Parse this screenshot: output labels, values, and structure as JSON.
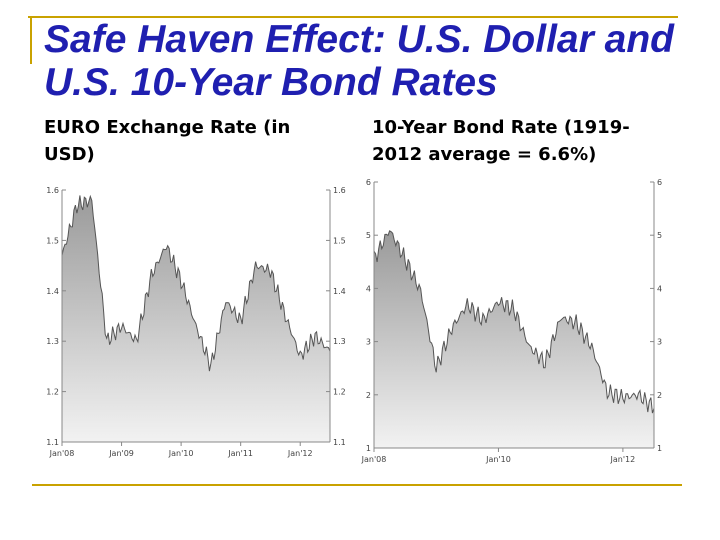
{
  "slide": {
    "title": "Safe Haven Effect:  U.S. Dollar and U.S. 10-Year Bond Rates",
    "left_heading": "EURO Exchange Rate (in USD)",
    "right_heading": "10-Year Bond Rate (1919-2012 average = 6.6%)",
    "accent_color": "#c9a200",
    "title_color": "#1f1fb0"
  },
  "chart_data": [
    {
      "type": "area",
      "x": [
        "Jan'08",
        "Apr'08",
        "Jul'08",
        "Oct'08",
        "Jan'09",
        "Apr'09",
        "Jul'09",
        "Oct'09",
        "Jan'10",
        "Apr'10",
        "Jul'10",
        "Oct'10",
        "Jan'11",
        "Apr'11",
        "Jul'11",
        "Oct'11",
        "Jan'12",
        "Apr'12",
        "May'12"
      ],
      "values": [
        1.47,
        1.57,
        1.58,
        1.3,
        1.33,
        1.3,
        1.43,
        1.49,
        1.42,
        1.33,
        1.25,
        1.38,
        1.34,
        1.45,
        1.44,
        1.35,
        1.27,
        1.31,
        1.28
      ],
      "x_tick_labels": [
        "Jan'08",
        "Jan'09",
        "Jan'10",
        "Jan'11",
        "Jan'12"
      ],
      "y_ticks": [
        "1.1",
        "1.2",
        "1.3",
        "1.4",
        "1.5",
        "1.6"
      ],
      "ylim": [
        1.1,
        1.6
      ],
      "grid": false,
      "fill_color": "#bdbdbd"
    },
    {
      "type": "area",
      "x": [
        "Jan'08",
        "Apr'08",
        "Jul'08",
        "Oct'08",
        "Jan'09",
        "Apr'09",
        "Jul'09",
        "Oct'09",
        "Jan'10",
        "Apr'10",
        "Jul'10",
        "Oct'10",
        "Jan'11",
        "Apr'11",
        "Jul'11",
        "Oct'11",
        "Jan'12",
        "Apr'12",
        "May'12"
      ],
      "values": [
        4.55,
        5.1,
        4.55,
        3.95,
        2.5,
        3.25,
        3.7,
        3.4,
        3.75,
        3.6,
        2.9,
        2.6,
        3.45,
        3.35,
        2.9,
        2.05,
        1.95,
        2.0,
        1.75
      ],
      "x_tick_labels": [
        "Jan'08",
        "Jan'10",
        "Jan'12"
      ],
      "y_ticks": [
        "1",
        "2",
        "3",
        "4",
        "5",
        "6"
      ],
      "ylim": [
        1,
        6
      ],
      "grid": false,
      "fill_color": "#bdbdbd"
    }
  ]
}
